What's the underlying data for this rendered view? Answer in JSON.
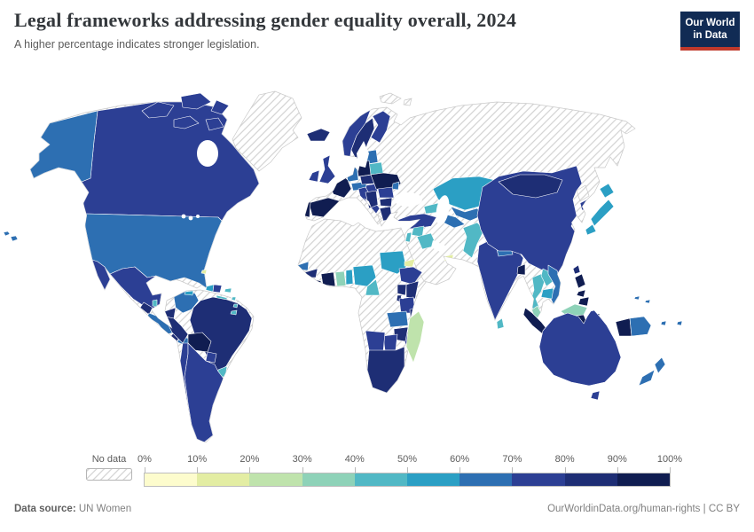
{
  "header": {
    "title": "Legal frameworks addressing gender equality overall, 2024",
    "subtitle": "A higher percentage indicates stronger legislation.",
    "logo_line1": "Our World",
    "logo_line2": "in Data",
    "logo_bg": "#112b54",
    "logo_accent": "#c0392b"
  },
  "legend": {
    "no_data_label": "No data",
    "tick_labels": [
      "0%",
      "10%",
      "20%",
      "30%",
      "40%",
      "50%",
      "60%",
      "70%",
      "80%",
      "90%",
      "100%"
    ],
    "bands": [
      {
        "label": "0-10%",
        "color": "#fdfccd"
      },
      {
        "label": "10-20%",
        "color": "#e3eda3"
      },
      {
        "label": "20-30%",
        "color": "#bfe3ac"
      },
      {
        "label": "30-40%",
        "color": "#8ed2b8"
      },
      {
        "label": "40-50%",
        "color": "#51b8c5"
      },
      {
        "label": "50-60%",
        "color": "#2b9fc4"
      },
      {
        "label": "60-70%",
        "color": "#2d6fb2"
      },
      {
        "label": "70-80%",
        "color": "#2c3f94"
      },
      {
        "label": "80-90%",
        "color": "#1e2e75"
      },
      {
        "label": "90-100%",
        "color": "#101d51"
      }
    ]
  },
  "footer": {
    "source_label": "Data source:",
    "source": "UN Women",
    "link": "OurWorldinData.org/human-rights",
    "divider": "|",
    "license": "CC BY"
  },
  "map": {
    "hatch_line_color": "#d2d2d2",
    "coast_color": "#c9c9c9",
    "border_color": "#ffffff",
    "regions": {
      "canada": 7,
      "canada-arctic": 7,
      "alaska": 6,
      "usa": 6,
      "hawaii": 6,
      "mexico": 7,
      "guatemala": 8,
      "belize": 4,
      "honduras-nicaragua": 6,
      "costa-rica": 8,
      "panama": 6,
      "bahamas": 1,
      "jamaica": 5,
      "haiti": 5,
      "dominican-republic": 7,
      "puerto-rico": 4,
      "lesser-antilles": 4,
      "trinidad": 4,
      "colombia": 6,
      "guyana": 4,
      "ecuador": 8,
      "peru": 8,
      "brazil": 8,
      "bolivia": 9,
      "paraguay": 7,
      "uruguay": 4,
      "chile": 7,
      "argentina": 7,
      "iceland": 8,
      "uk": 7,
      "ireland": 7,
      "norway": 7,
      "sweden": 8,
      "finland": 7,
      "denmark": 8,
      "baltics": 6,
      "belarus": 4,
      "poland": 9,
      "germany": 6,
      "benelux": 8,
      "france": 9,
      "spain": 9,
      "portugal": 9,
      "italy": 7,
      "switzerland-austria": 6,
      "czech-slovakia": 8,
      "hungary": 7,
      "ukraine": 9,
      "moldova": 6,
      "romania": 7,
      "balkans": 8,
      "bulgaria": 8,
      "greece": 8,
      "turkey": 7,
      "caucasus": 4,
      "kazakhstan": 5,
      "uzbekistan": 6,
      "turkmenistan": 6,
      "kyrgyzstan": 9,
      "tajikistan": 5,
      "syria": 4,
      "iraq": 4,
      "israel": 4,
      "uae": 1,
      "pakistan": 4,
      "india": 7,
      "nepal": 6,
      "bangladesh": 9,
      "sri-lanka": 4,
      "china": 7,
      "mongolia": 8,
      "south-korea": 7,
      "japan": 5,
      "taiwan": 8,
      "thailand": 4,
      "laos": 4,
      "cambodia": 5,
      "vietnam": 6,
      "malaysia": 3,
      "indonesia": 9,
      "philippines": 9,
      "papua-new-guinea": 6,
      "solomon-vanuatu": 6,
      "fiji": 6,
      "australia": 7,
      "new-zealand": 6,
      "senegal": 6,
      "guinea": 8,
      "sierra-leone": 6,
      "liberia": 9,
      "ivory-coast": 9,
      "ghana": 3,
      "togo-benin": 5,
      "nigeria": 5,
      "cameroon": 4,
      "sudan": 5,
      "eritrea": 1,
      "ethiopia": 7,
      "kenya": 8,
      "uganda": 8,
      "rwanda-burundi": 8,
      "tanzania": 7,
      "zambia": 6,
      "malawi": 8,
      "mozambique": 7,
      "zimbabwe": 8,
      "botswana": 7,
      "namibia": 7,
      "south-africa": 8,
      "madagascar": 2
    },
    "no_data_regions": [
      "greenland",
      "russia",
      "svalbard",
      "venezuela",
      "suriname",
      "cuba",
      "north-korea",
      "iran",
      "saudi-arabia",
      "yemen-oman",
      "afghanistan",
      "myanmar",
      "morocco",
      "algeria",
      "tunisia",
      "libya",
      "egypt",
      "mauritania",
      "mali",
      "niger",
      "chad",
      "central-african-republic",
      "south-sudan",
      "somalia",
      "drc",
      "congo-gabon",
      "angola",
      "burkina-faso"
    ]
  }
}
